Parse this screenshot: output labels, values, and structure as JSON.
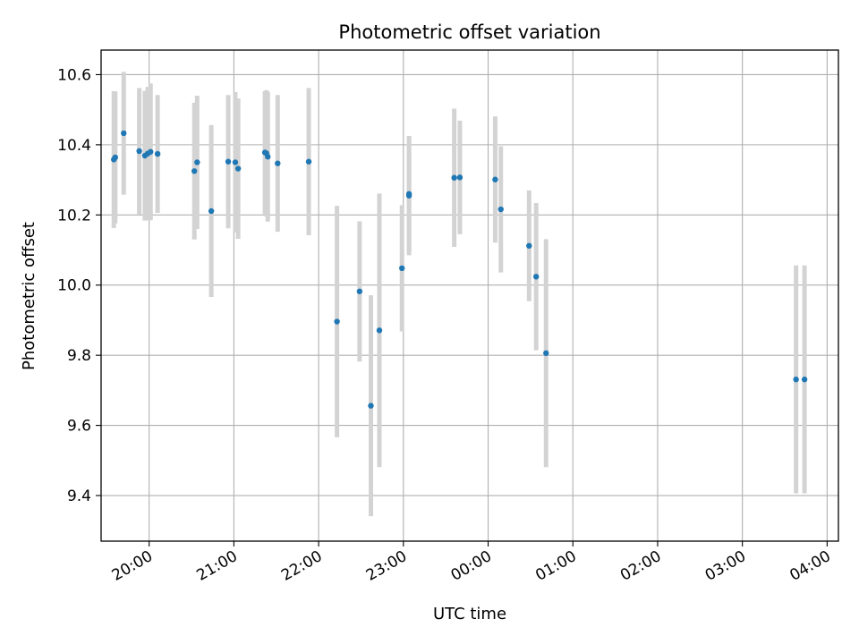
{
  "chart_data": {
    "type": "scatter",
    "title": "Photometric offset variation",
    "xlabel": "UTC time",
    "ylabel": "Photometric offset",
    "x_unit": "UTC time (HH:MM, evening into next morning)",
    "xlim": [
      "19:26",
      "04:08"
    ],
    "ylim": [
      9.27,
      10.67
    ],
    "x_ticks": [
      "20:00",
      "21:00",
      "22:00",
      "23:00",
      "00:00",
      "01:00",
      "02:00",
      "03:00",
      "04:00"
    ],
    "y_ticks": [
      9.4,
      9.6,
      9.8,
      10.0,
      10.2,
      10.4,
      10.6
    ],
    "y_tick_labels": [
      "9.4",
      "9.6",
      "9.8",
      "10.0",
      "10.2",
      "10.4",
      "10.6"
    ],
    "grid": true,
    "colors": {
      "points": "#1f77b4",
      "error_bars": "#d3d3d3",
      "grid": "#b0b0b0"
    },
    "points": [
      {
        "t": "19:35",
        "y": 10.358,
        "err": 0.195
      },
      {
        "t": "19:36",
        "y": 10.364,
        "err": 0.188
      },
      {
        "t": "19:42",
        "y": 10.433,
        "err": 0.175
      },
      {
        "t": "19:53",
        "y": 10.382,
        "err": 0.18
      },
      {
        "t": "19:57",
        "y": 10.369,
        "err": 0.185
      },
      {
        "t": "19:59",
        "y": 10.375,
        "err": 0.19
      },
      {
        "t": "20:01",
        "y": 10.38,
        "err": 0.195
      },
      {
        "t": "20:06",
        "y": 10.374,
        "err": 0.168
      },
      {
        "t": "20:32",
        "y": 10.325,
        "err": 0.195
      },
      {
        "t": "20:34",
        "y": 10.35,
        "err": 0.19
      },
      {
        "t": "20:44",
        "y": 10.211,
        "err": 0.245
      },
      {
        "t": "20:56",
        "y": 10.352,
        "err": 0.19
      },
      {
        "t": "21:01",
        "y": 10.35,
        "err": 0.2
      },
      {
        "t": "21:03",
        "y": 10.332,
        "err": 0.2
      },
      {
        "t": "21:22",
        "y": 10.378,
        "err": 0.175
      },
      {
        "t": "21:23",
        "y": 10.376,
        "err": 0.18
      },
      {
        "t": "21:24",
        "y": 10.366,
        "err": 0.185
      },
      {
        "t": "21:31",
        "y": 10.347,
        "err": 0.195
      },
      {
        "t": "21:53",
        "y": 10.352,
        "err": 0.21
      },
      {
        "t": "22:13",
        "y": 9.896,
        "err": 0.33
      },
      {
        "t": "22:29",
        "y": 9.982,
        "err": 0.2
      },
      {
        "t": "22:37",
        "y": 9.656,
        "err": 0.315
      },
      {
        "t": "22:43",
        "y": 9.871,
        "err": 0.39
      },
      {
        "t": "22:59",
        "y": 10.048,
        "err": 0.18
      },
      {
        "t": "23:04",
        "y": 10.26,
        "err": 0.165
      },
      {
        "t": "23:04",
        "y": 10.255,
        "err": 0.17
      },
      {
        "t": "23:36",
        "y": 10.306,
        "err": 0.197
      },
      {
        "t": "23:40",
        "y": 10.307,
        "err": 0.162
      },
      {
        "t": "00:05",
        "y": 10.301,
        "err": 0.18
      },
      {
        "t": "00:09",
        "y": 10.216,
        "err": 0.18
      },
      {
        "t": "00:29",
        "y": 10.112,
        "err": 0.158
      },
      {
        "t": "00:34",
        "y": 10.024,
        "err": 0.21
      },
      {
        "t": "00:41",
        "y": 9.806,
        "err": 0.325
      },
      {
        "t": "03:38",
        "y": 9.731,
        "err": 0.325
      },
      {
        "t": "03:44",
        "y": 9.731,
        "err": 0.325
      }
    ]
  }
}
